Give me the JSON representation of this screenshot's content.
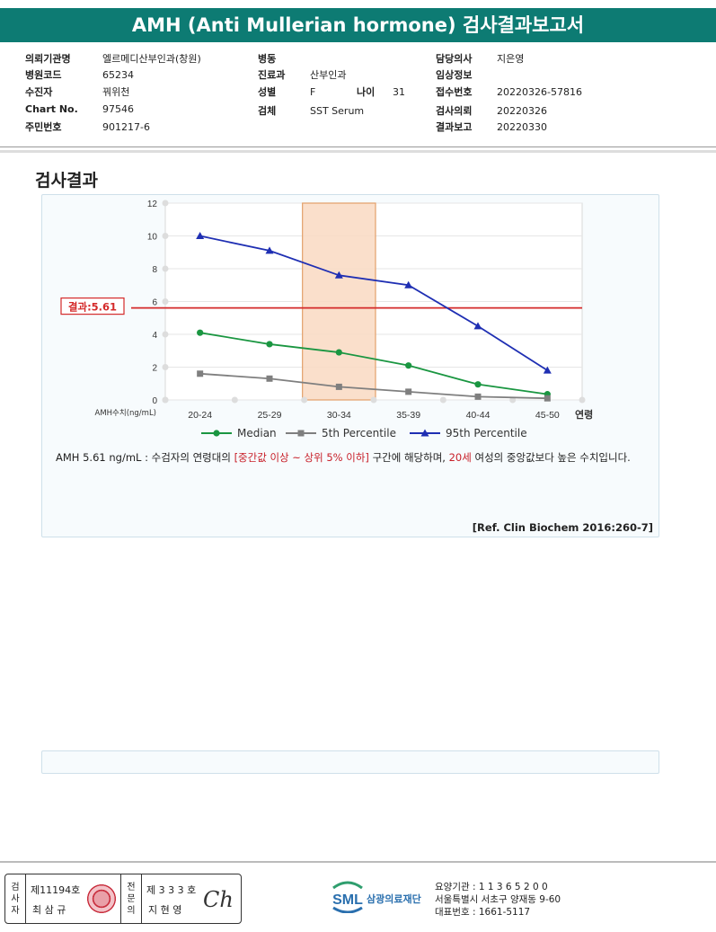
{
  "report": {
    "title": "AMH (Anti Mullerian hormone) 검사결과보고서",
    "left": [
      {
        "label": "의뢰기관명",
        "value": "엘르메디산부인과(창원)"
      },
      {
        "label": "병원코드",
        "value": "65234"
      },
      {
        "label": "수진자",
        "value": "꿔위천"
      },
      {
        "label": "Chart No.",
        "value": "97546"
      },
      {
        "label": "주민번호",
        "value": "901217-6"
      }
    ],
    "middle": [
      {
        "label": "병동",
        "value": ""
      },
      {
        "label": "진료과",
        "value": "산부인과"
      },
      {
        "label": "성별",
        "value": "F"
      },
      {
        "label": "검체",
        "value": "SST Serum"
      }
    ],
    "age": {
      "label": "나이",
      "value": "31"
    },
    "right": [
      {
        "label": "담당의사",
        "value": "지은영"
      },
      {
        "label": "임상정보",
        "value": ""
      },
      {
        "label": "접수번호",
        "value": "20220326-57816"
      },
      {
        "label": "검사의뢰",
        "value": "20220326"
      },
      {
        "label": "결과보고",
        "value": "20220330"
      }
    ]
  },
  "section_title": "검사결과",
  "result_label": "결과:5.61",
  "result_value": 5.61,
  "chart_data": {
    "type": "line",
    "categories": [
      "20-24",
      "25-29",
      "30-34",
      "35-39",
      "40-44",
      "45-50"
    ],
    "x_axis_label": "연령",
    "y_axis_label": "AMH수치(ng/mL)",
    "ylim": [
      0,
      12
    ],
    "yticks": [
      "0",
      "2",
      "4",
      "6",
      "8",
      "10",
      "12"
    ],
    "highlight_category": "30-34",
    "grid": true,
    "legend_position": "bottom",
    "series": [
      {
        "name": "Median",
        "color": "#1a9641",
        "marker": "circle",
        "values": [
          4.1,
          3.4,
          2.9,
          2.1,
          0.95,
          0.35
        ]
      },
      {
        "name": "5th Percentile",
        "color": "#7f7f7f",
        "marker": "square",
        "values": [
          1.6,
          1.3,
          0.8,
          0.5,
          0.2,
          0.1
        ]
      },
      {
        "name": "95th Percentile",
        "color": "#1f2fb3",
        "marker": "triangle",
        "values": [
          10.0,
          9.1,
          7.6,
          7.0,
          4.5,
          1.8
        ]
      }
    ]
  },
  "comment": {
    "prefix": "AMH  5.61 ng/mL : 수검자의 연령대의 ",
    "range": "[중간값 이상 ~ 상위 5% 이하]",
    "middle": " 구간에 해당하며, ",
    "age": "20세",
    "suffix": " 여성의 중앙값보다 높은 수치입니다."
  },
  "reference": "[Ref. Clin Biochem 2016:260-7]",
  "colors": {
    "header": "#0d7b73",
    "result_line": "#d42a2a",
    "highlight": "#f9d9c2"
  },
  "footer": {
    "inspector_label": [
      "검",
      "사",
      "자"
    ],
    "inspector_no": "제11194호",
    "inspector_name": "최 삼 규",
    "specialist_label": [
      "전",
      "문",
      "의"
    ],
    "specialist_no": "제 3 3 3 호",
    "specialist_name": "지 현 영",
    "signature": "Ch",
    "logo_text": "SML",
    "org_name": "삼광의료재단",
    "org_lines": [
      "요양기관 : 1 1 3 6 5 2 0 0",
      "서울특별시 서초구 양재동 9-60",
      "대표번호 : 1661-5117"
    ]
  }
}
